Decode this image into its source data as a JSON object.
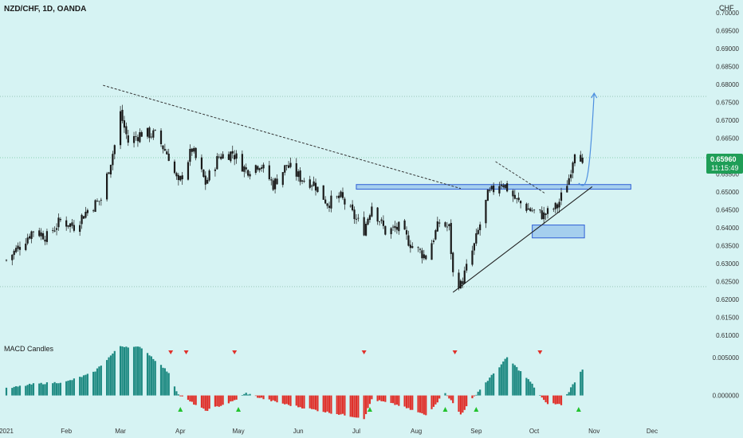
{
  "header": {
    "symbol_title": "NZD/CHF, 1D, OANDA",
    "currency": "CHF"
  },
  "price_badge": {
    "price": "0.65960",
    "countdown": "11:15:49"
  },
  "indicator": {
    "title": "MACD Candles"
  },
  "colors": {
    "background": "#d6f3f3",
    "bull": "#1e8a82",
    "bear": "#e0302a",
    "line": "#2a2a2a",
    "zone": "#2f5fd6",
    "badge": "#1f9e57",
    "arrow": "#4d8fe0"
  },
  "chart_data": [
    {
      "type": "candlestick",
      "title": "NZD/CHF, 1D, OANDA",
      "y_axis_labels": [
        "0.70000",
        "0.69500",
        "0.69000",
        "0.68500",
        "0.68000",
        "0.67500",
        "0.67000",
        "0.66500",
        "0.66000",
        "0.65500",
        "0.65000",
        "0.64500",
        "0.64000",
        "0.63500",
        "0.63000",
        "0.62500",
        "0.62000",
        "0.61500",
        "0.61000"
      ],
      "ylim": [
        0.6098,
        0.7005
      ],
      "x_axis_labels": [
        "2021",
        "Feb",
        "Mar",
        "Apr",
        "May",
        "Jun",
        "Jul",
        "Aug",
        "Sep",
        "Oct",
        "Nov",
        "Dec"
      ],
      "last_price": 0.6596,
      "close_path": [
        {
          "date": "2021-01-01",
          "close": 0.631
        },
        {
          "date": "2021-01-08",
          "close": 0.635
        },
        {
          "date": "2021-01-15",
          "close": 0.6395
        },
        {
          "date": "2021-01-22",
          "close": 0.6375
        },
        {
          "date": "2021-01-29",
          "close": 0.642
        },
        {
          "date": "2021-02-05",
          "close": 0.6405
        },
        {
          "date": "2021-02-12",
          "close": 0.645
        },
        {
          "date": "2021-02-19",
          "close": 0.648
        },
        {
          "date": "2021-02-26",
          "close": 0.663
        },
        {
          "date": "2021-03-01",
          "close": 0.672
        },
        {
          "date": "2021-03-05",
          "close": 0.664
        },
        {
          "date": "2021-03-12",
          "close": 0.6665
        },
        {
          "date": "2021-03-19",
          "close": 0.666
        },
        {
          "date": "2021-03-26",
          "close": 0.66
        },
        {
          "date": "2021-03-31",
          "close": 0.652
        },
        {
          "date": "2021-04-07",
          "close": 0.662
        },
        {
          "date": "2021-04-14",
          "close": 0.6525
        },
        {
          "date": "2021-04-21",
          "close": 0.66
        },
        {
          "date": "2021-04-28",
          "close": 0.661
        },
        {
          "date": "2021-05-05",
          "close": 0.656
        },
        {
          "date": "2021-05-12",
          "close": 0.658
        },
        {
          "date": "2021-05-19",
          "close": 0.652
        },
        {
          "date": "2021-05-26",
          "close": 0.6575
        },
        {
          "date": "2021-06-02",
          "close": 0.654
        },
        {
          "date": "2021-06-09",
          "close": 0.6525
        },
        {
          "date": "2021-06-16",
          "close": 0.647
        },
        {
          "date": "2021-06-23",
          "close": 0.6485
        },
        {
          "date": "2021-06-30",
          "close": 0.643
        },
        {
          "date": "2021-07-05",
          "close": 0.6395
        },
        {
          "date": "2021-07-09",
          "close": 0.6465
        },
        {
          "date": "2021-07-16",
          "close": 0.639
        },
        {
          "date": "2021-07-23",
          "close": 0.64
        },
        {
          "date": "2021-07-30",
          "close": 0.635
        },
        {
          "date": "2021-08-06",
          "close": 0.632
        },
        {
          "date": "2021-08-13",
          "close": 0.6415
        },
        {
          "date": "2021-08-18",
          "close": 0.64
        },
        {
          "date": "2021-08-20",
          "close": 0.627
        },
        {
          "date": "2021-08-24",
          "close": 0.624
        },
        {
          "date": "2021-08-31",
          "close": 0.635
        },
        {
          "date": "2021-09-07",
          "close": 0.649
        },
        {
          "date": "2021-09-14",
          "close": 0.653
        },
        {
          "date": "2021-09-17",
          "close": 0.651
        },
        {
          "date": "2021-09-22",
          "close": 0.6475
        },
        {
          "date": "2021-09-29",
          "close": 0.645
        },
        {
          "date": "2021-10-06",
          "close": 0.6435
        },
        {
          "date": "2021-10-13",
          "close": 0.646
        },
        {
          "date": "2021-10-19",
          "close": 0.654
        },
        {
          "date": "2021-10-22",
          "close": 0.662
        },
        {
          "date": "2021-10-26",
          "close": 0.6596
        }
      ],
      "annotations": {
        "descending_trendline": [
          {
            "date": "2021-02-20",
            "price": 0.6798
          },
          {
            "date": "2021-08-24",
            "price": 0.651
          }
        ],
        "ascending_trendline": [
          {
            "date": "2021-08-20",
            "price": 0.622
          },
          {
            "date": "2021-10-31",
            "price": 0.6515
          }
        ],
        "resistance_zone": {
          "from": "2021-07-01",
          "to": "2021-11-20",
          "low": 0.6508,
          "high": 0.6521
        },
        "demand_zone": {
          "from": "2021-09-30",
          "to": "2021-10-27",
          "low": 0.6372,
          "high": 0.6408
        },
        "horizontal_levels": [
          0.6767,
          0.6236
        ],
        "projection_arrow_target": 0.6776
      }
    },
    {
      "type": "bar",
      "title": "MACD Candles",
      "y_axis_labels": [
        "0.005000",
        "0.000000"
      ],
      "ylim": [
        -0.0035,
        0.0075
      ],
      "anchors": [
        {
          "date": "2021-01-01",
          "value": 0.0009
        },
        {
          "date": "2021-01-15",
          "value": 0.0015
        },
        {
          "date": "2021-02-01",
          "value": 0.0018
        },
        {
          "date": "2021-02-15",
          "value": 0.003
        },
        {
          "date": "2021-03-01",
          "value": 0.0065
        },
        {
          "date": "2021-03-12",
          "value": 0.0063
        },
        {
          "date": "2021-03-26",
          "value": 0.003
        },
        {
          "date": "2021-03-31",
          "value": 0.0001
        },
        {
          "date": "2021-04-14",
          "value": -0.002
        },
        {
          "date": "2021-04-28",
          "value": -0.0008
        },
        {
          "date": "2021-05-05",
          "value": 0.0003
        },
        {
          "date": "2021-05-12",
          "value": -0.0003
        },
        {
          "date": "2021-05-26",
          "value": -0.0012
        },
        {
          "date": "2021-06-16",
          "value": -0.0022
        },
        {
          "date": "2021-07-05",
          "value": -0.003
        },
        {
          "date": "2021-07-09",
          "value": -0.0005
        },
        {
          "date": "2021-07-23",
          "value": -0.0013
        },
        {
          "date": "2021-08-06",
          "value": -0.0026
        },
        {
          "date": "2021-08-16",
          "value": 0.0004
        },
        {
          "date": "2021-08-24",
          "value": -0.0025
        },
        {
          "date": "2021-09-01",
          "value": 0.0002
        },
        {
          "date": "2021-09-17",
          "value": 0.005
        },
        {
          "date": "2021-09-29",
          "value": 0.0018
        },
        {
          "date": "2021-10-07",
          "value": -0.001
        },
        {
          "date": "2021-10-15",
          "value": -0.0012
        },
        {
          "date": "2021-10-20",
          "value": 0.001
        },
        {
          "date": "2021-10-26",
          "value": 0.0035
        }
      ],
      "sell_signal_dates": [
        "2021-03-27",
        "2021-04-04",
        "2021-04-29",
        "2021-07-05",
        "2021-08-21",
        "2021-10-04"
      ],
      "buy_signal_dates": [
        "2021-04-01",
        "2021-05-01",
        "2021-07-08",
        "2021-08-16",
        "2021-09-01",
        "2021-10-24"
      ]
    }
  ]
}
